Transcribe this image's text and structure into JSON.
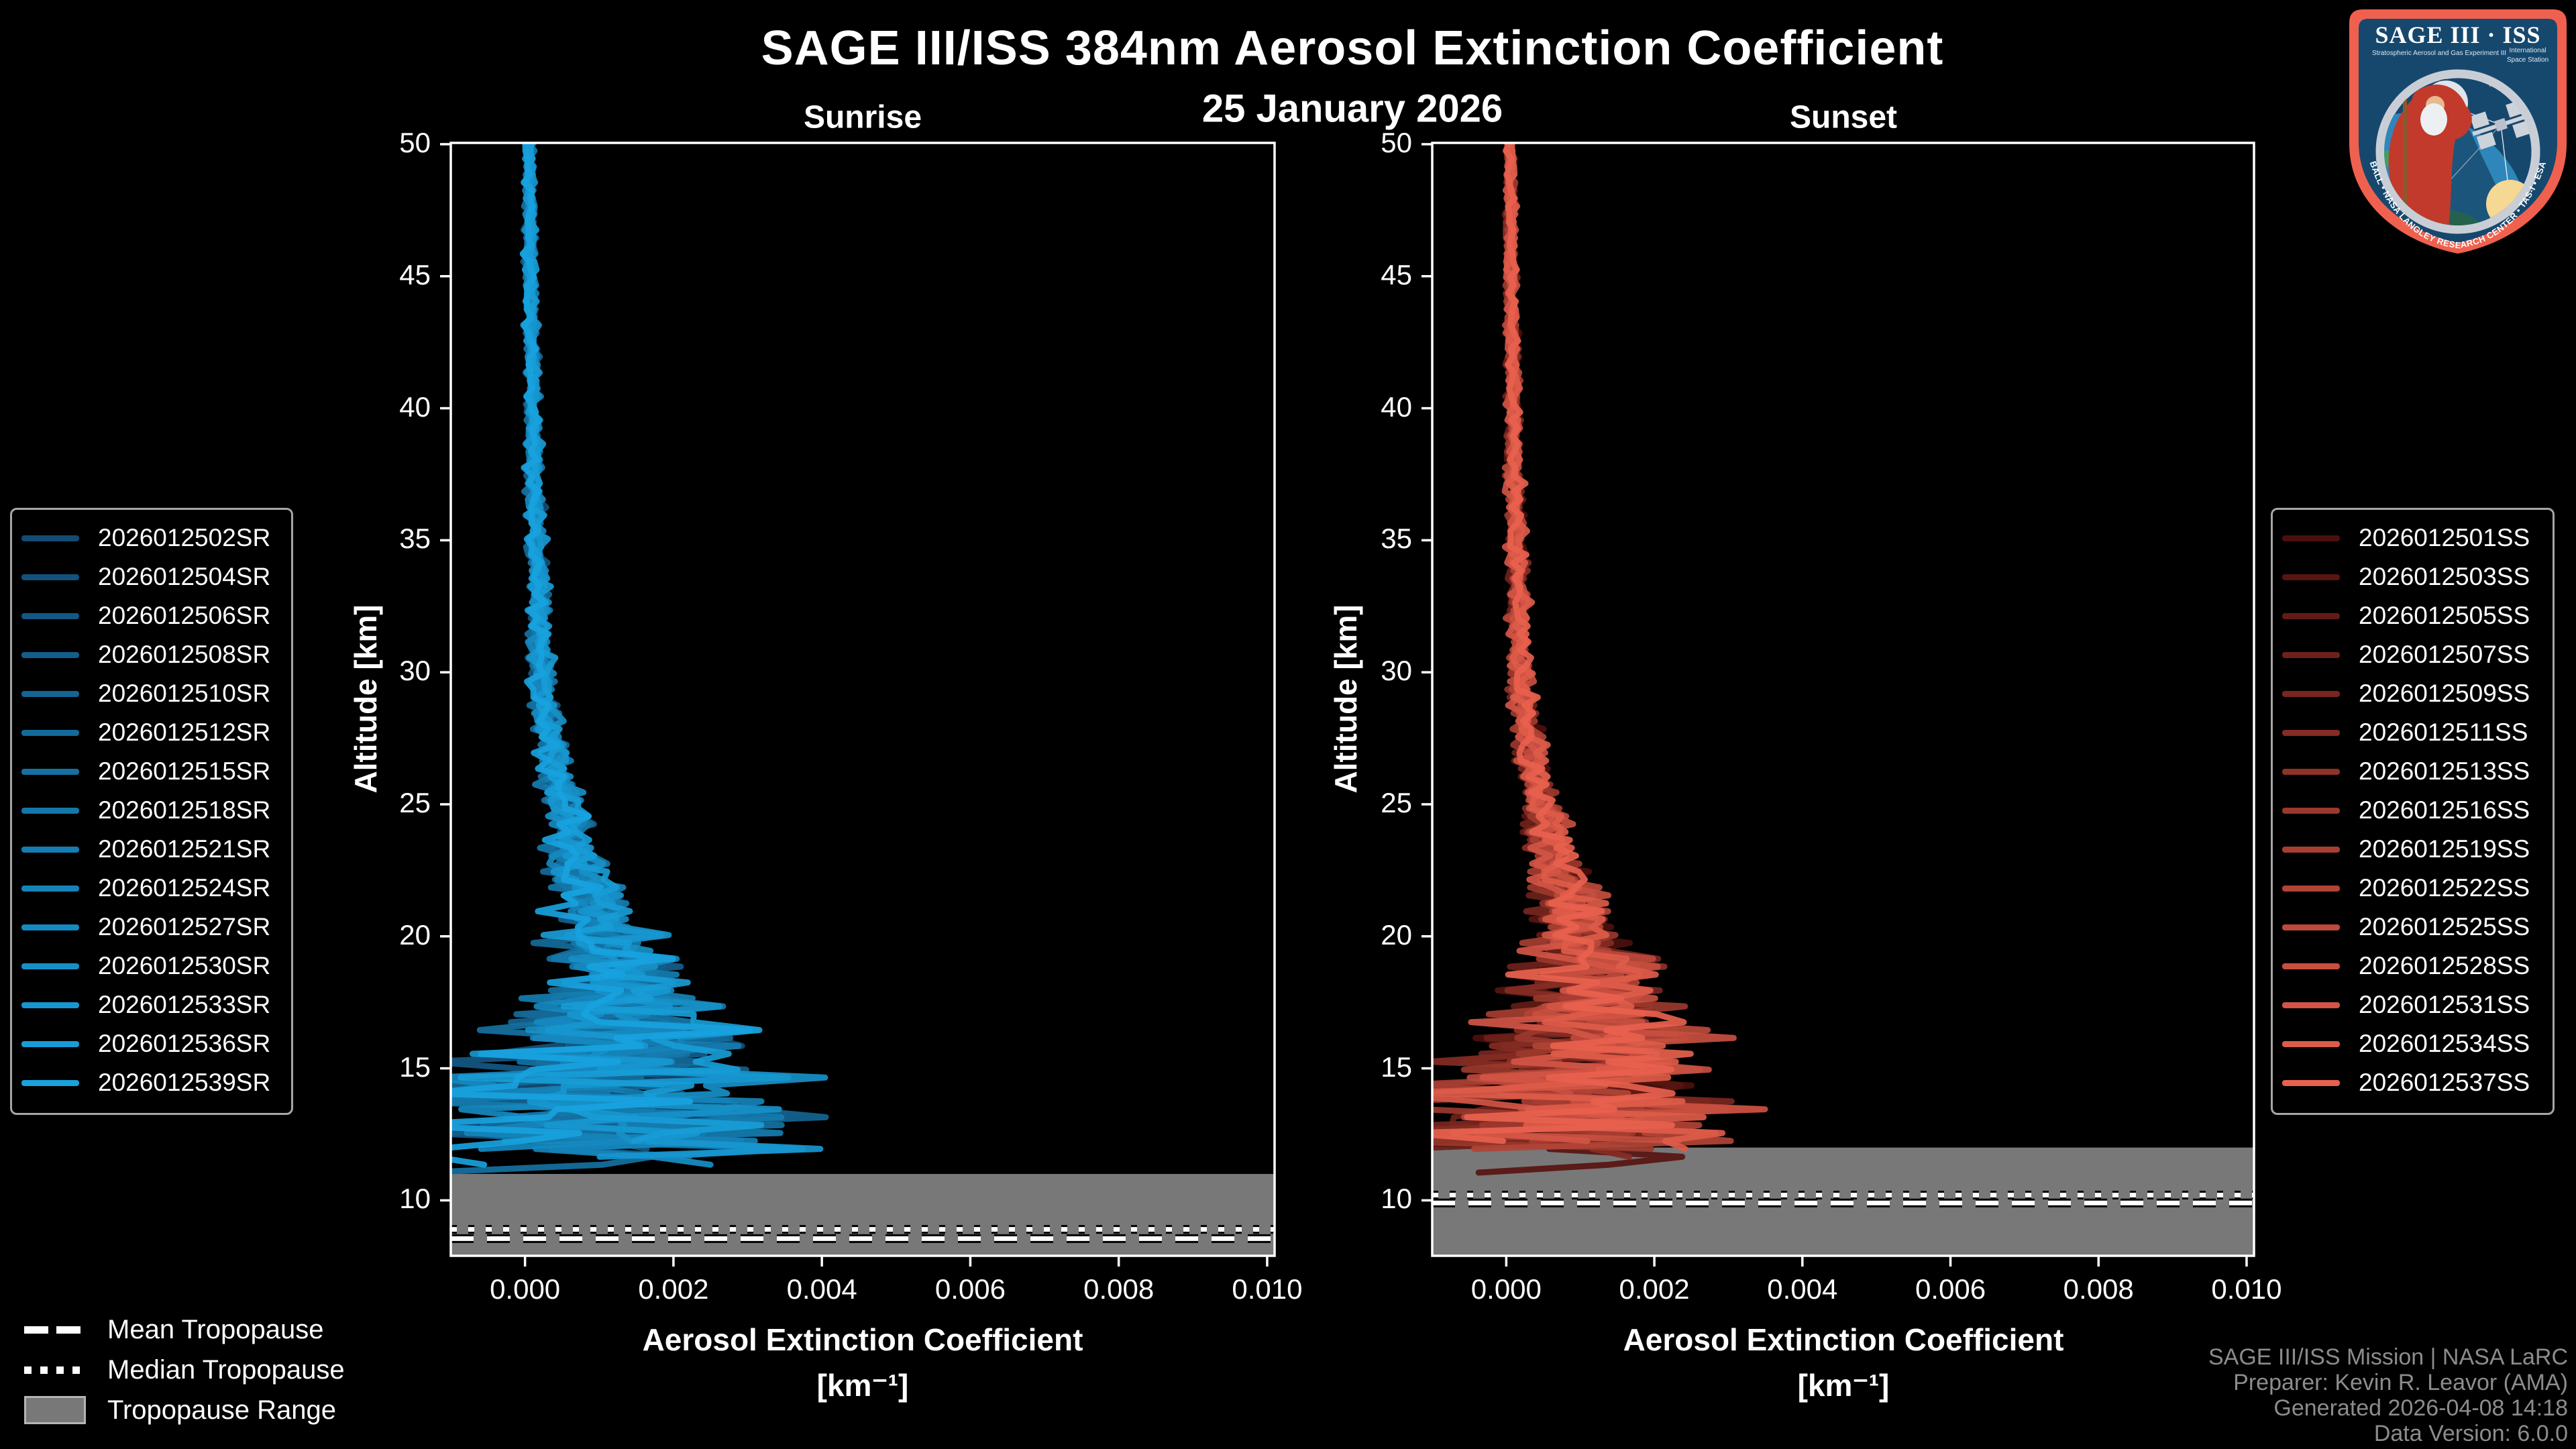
{
  "header": {
    "title": "SAGE III/ISS 384nm Aerosol Extinction Coefficient",
    "date": "25 January 2026"
  },
  "panels": [
    {
      "title": "Sunrise",
      "xlabel": "Aerosol Extinction Coefficient",
      "xunits": "[km⁻¹]",
      "ylabel": "Altitude [km]"
    },
    {
      "title": "Sunset",
      "xlabel": "Aerosol Extinction Coefficient",
      "xunits": "[km⁻¹]",
      "ylabel": "Altitude [km]"
    }
  ],
  "tropopause_legend": {
    "mean": "Mean Tropopause",
    "median": "Median Tropopause",
    "range": "Tropopause Range"
  },
  "attribution": {
    "lines": [
      "SAGE III/ISS Mission | NASA LaRC",
      "Preparer: Kevin R. Leavor (AMA)",
      "Generated 2026-04-08 14:18",
      "Data Version: 6.0.0"
    ]
  },
  "logo": {
    "title": "SAGE III · ISS",
    "subtitle_left": "Stratospheric Aerosol and Gas Experiment III",
    "subtitle_right_1": "International",
    "subtitle_right_2": "Space Station",
    "arc_text": "BALL • NASA LANGLEY RESEARCH CENTER • TAS-I • ESA",
    "colors": {
      "border": "#ef614e",
      "field": "#16486e",
      "ring": "#c9ced6",
      "ocean": "#2f86ba",
      "land": "#3fa061",
      "robe": "#c23a2b",
      "sun": "#f5d894",
      "moon": "#dfe4ea",
      "text": "#ffffff"
    }
  },
  "chart_data": [
    {
      "type": "line",
      "title": "Sunrise",
      "xlabel": "Aerosol Extinction Coefficient [km⁻¹]",
      "ylabel": "Altitude [km]",
      "xlim": [
        -0.001,
        0.0101
      ],
      "ylim": [
        7.9,
        50.05
      ],
      "xticks": [
        0.0,
        0.002,
        0.004,
        0.006,
        0.008,
        0.01
      ],
      "xtick_labels": [
        "0.000",
        "0.002",
        "0.004",
        "0.006",
        "0.008",
        "0.010"
      ],
      "yticks": [
        10,
        15,
        20,
        25,
        30,
        35,
        40,
        45,
        50
      ],
      "grid": false,
      "legend_position": "outside-left",
      "line_color_start": "#124c74",
      "line_color_end": "#18a2de",
      "series_names": [
        "2026012502SR",
        "2026012504SR",
        "2026012506SR",
        "2026012508SR",
        "2026012510SR",
        "2026012512SR",
        "2026012515SR",
        "2026012518SR",
        "2026012521SR",
        "2026012524SR",
        "2026012527SR",
        "2026012530SR",
        "2026012533SR",
        "2026012536SR",
        "2026012539SR"
      ],
      "mean_profile": {
        "altitude_km": [
          11,
          12,
          13,
          14,
          15,
          16.5,
          18,
          20,
          22,
          24,
          26,
          28,
          30,
          35,
          40,
          45,
          50
        ],
        "extinction_km-1": [
          0.0005,
          0.0007,
          0.0009,
          0.0011,
          0.00125,
          0.00135,
          0.00125,
          0.00105,
          0.0008,
          0.0006,
          0.00042,
          0.0003,
          0.00022,
          0.00015,
          0.0001,
          7e-05,
          5e-05
        ]
      },
      "spread_profile": {
        "altitude_km": [
          11,
          12,
          13,
          14,
          15,
          16,
          18,
          20,
          22,
          24,
          27,
          30,
          35,
          40,
          45,
          50
        ],
        "half_width": [
          0.0016,
          0.0018,
          0.0018,
          0.0016,
          0.0014,
          0.0011,
          0.0007,
          0.00045,
          0.0003,
          0.0002,
          0.00014,
          0.0001,
          8e-05,
          6e-05,
          5e-05,
          4e-05
        ]
      },
      "profile_bottom_km": [
        12.4,
        12.1,
        11.8,
        12.3,
        11.5,
        12.0,
        10.9,
        11.8,
        12.2,
        11.4,
        11.9,
        11.1,
        11.6,
        12.0,
        11.3
      ],
      "tropopause": {
        "mean_km": 8.55,
        "median_km": 8.9,
        "range_top_km": 11.0,
        "range_bottom_km": 7.9
      }
    },
    {
      "type": "line",
      "title": "Sunset",
      "xlabel": "Aerosol Extinction Coefficient [km⁻¹]",
      "ylabel": "Altitude [km]",
      "xlim": [
        -0.001,
        0.0101
      ],
      "ylim": [
        7.9,
        50.05
      ],
      "xticks": [
        0.0,
        0.002,
        0.004,
        0.006,
        0.008,
        0.01
      ],
      "xtick_labels": [
        "0.000",
        "0.002",
        "0.004",
        "0.006",
        "0.008",
        "0.010"
      ],
      "yticks": [
        10,
        15,
        20,
        25,
        30,
        35,
        40,
        45,
        50
      ],
      "grid": false,
      "legend_position": "outside-right",
      "line_color_start": "#4d0f0c",
      "line_color_end": "#e8614e",
      "series_names": [
        "2026012501SS",
        "2026012503SS",
        "2026012505SS",
        "2026012507SS",
        "2026012509SS",
        "2026012511SS",
        "2026012513SS",
        "2026012516SS",
        "2026012519SS",
        "2026012522SS",
        "2026012525SS",
        "2026012528SS",
        "2026012531SS",
        "2026012534SS",
        "2026012537SS"
      ],
      "mean_profile": {
        "altitude_km": [
          11.5,
          12,
          13,
          14,
          15,
          16,
          18,
          20,
          22,
          24,
          26,
          28,
          30,
          35,
          40,
          45,
          50
        ],
        "extinction_km-1": [
          0.0006,
          0.0007,
          0.0009,
          0.0011,
          0.00125,
          0.0013,
          0.0012,
          0.001,
          0.0008,
          0.00058,
          0.0004,
          0.00028,
          0.0002,
          0.00014,
          0.0001,
          7e-05,
          5e-05
        ]
      },
      "spread_profile": {
        "altitude_km": [
          11.5,
          12.5,
          13,
          14,
          15,
          16,
          18,
          20,
          22,
          24,
          27,
          30,
          35,
          40,
          45,
          50
        ],
        "half_width": [
          0.0016,
          0.0017,
          0.0016,
          0.0014,
          0.0012,
          0.001,
          0.00065,
          0.0004,
          0.00028,
          0.00018,
          0.00013,
          0.0001,
          8e-05,
          6e-05,
          5e-05,
          4e-05
        ]
      },
      "profile_bottom_km": [
        12.2,
        11.0,
        12.4,
        11.8,
        12.0,
        11.5,
        12.3,
        11.9,
        12.1,
        11.7,
        12.4,
        12.0,
        12.2,
        11.9,
        12.1
      ],
      "tropopause": {
        "mean_km": 9.9,
        "median_km": 10.2,
        "range_top_km": 12.0,
        "range_bottom_km": 7.9
      }
    }
  ],
  "style_colors": {
    "background": "#000000",
    "spine": "#ffffff",
    "tropopause_band": "#787878",
    "tick_text": "#ffffff",
    "attribution_text": "#8c8c8c"
  }
}
